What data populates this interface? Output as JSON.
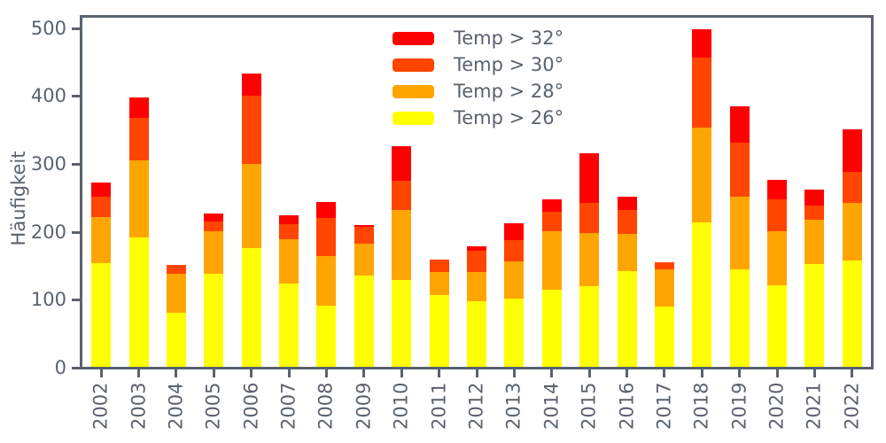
{
  "style": {
    "axis_color": "#5A626D",
    "text_color": "#5A626D",
    "background": "#FFFFFF"
  },
  "chart_data": {
    "type": "bar",
    "stacked": true,
    "title": "",
    "xlabel": "",
    "ylabel": "Häufigkeit",
    "ylim": [
      0,
      500
    ],
    "yticks": [
      0,
      100,
      200,
      300,
      400,
      500
    ],
    "grid": false,
    "legend_position": "upper-center-inside",
    "categories": [
      "2002",
      "2003",
      "2004",
      "2005",
      "2006",
      "2007",
      "2008",
      "2009",
      "2010",
      "2011",
      "2012",
      "2013",
      "2014",
      "2015",
      "2016",
      "2017",
      "2018",
      "2019",
      "2020",
      "2021",
      "2022"
    ],
    "series": [
      {
        "name": "Temp > 26°",
        "color": "#FFFF00",
        "values": [
          153,
          190,
          80,
          137,
          175,
          122,
          90,
          134,
          128,
          105,
          96,
          101,
          113,
          119,
          141,
          89,
          213,
          143,
          120,
          151,
          157
        ]
      },
      {
        "name": "Temp > 28°",
        "color": "#FFA500",
        "values": [
          67,
          114,
          57,
          63,
          124,
          66,
          73,
          47,
          103,
          34,
          44,
          54,
          87,
          78,
          54,
          54,
          139,
          107,
          79,
          66,
          84
        ]
      },
      {
        "name": "Temp > 30°",
        "color": "#FF4500",
        "values": [
          30,
          62,
          13,
          14,
          100,
          22,
          56,
          25,
          43,
          19,
          31,
          32,
          28,
          44,
          36,
          11,
          103,
          80,
          48,
          20,
          46
        ]
      },
      {
        "name": "Temp > 32°",
        "color": "#FF0000",
        "values": [
          21,
          31,
          0,
          12,
          33,
          13,
          24,
          2,
          51,
          0,
          7,
          24,
          18,
          73,
          19,
          0,
          42,
          53,
          28,
          24,
          62
        ]
      }
    ],
    "legend": [
      {
        "label": "Temp > 32°",
        "color": "#FF0000"
      },
      {
        "label": "Temp > 30°",
        "color": "#FF4500"
      },
      {
        "label": "Temp > 28°",
        "color": "#FFA500"
      },
      {
        "label": "Temp > 26°",
        "color": "#FFFF00"
      }
    ]
  }
}
